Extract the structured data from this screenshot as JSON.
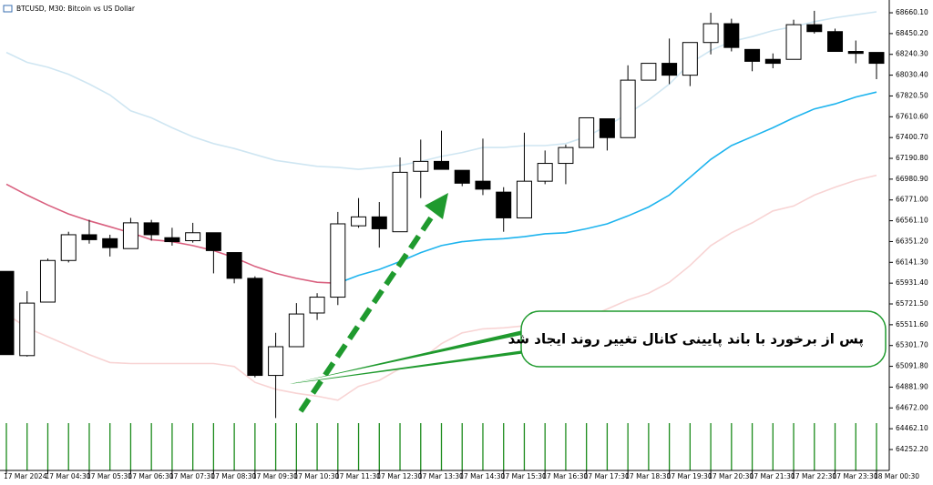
{
  "chart_data": {
    "type": "candlestick",
    "title": "BTCUSD, M30:  Bitcoin vs US Dollar",
    "annotation": "پس از برخورد با باند پایینی کانال تغییر روند ایجاد شد",
    "up_color": "#ffffff",
    "down_color": "#000000",
    "wick_color": "#000000",
    "categories": [
      "17 Mar 2024",
      null,
      "17 Mar 04:30",
      null,
      "17 Mar 05:30",
      null,
      "17 Mar 06:30",
      null,
      "17 Mar 07:30",
      null,
      "17 Mar 08:30",
      null,
      "17 Mar 09:30",
      null,
      "17 Mar 10:30",
      null,
      "17 Mar 11:30",
      null,
      "17 Mar 12:30",
      null,
      "17 Mar 13:30",
      null,
      "17 Mar 14:30",
      null,
      "17 Mar 15:30",
      null,
      "17 Mar 16:30",
      null,
      "17 Mar 17:30",
      null,
      "17 Mar 18:30",
      null,
      "17 Mar 19:30",
      null,
      "17 Mar 20:30",
      null,
      "17 Mar 21:30",
      null,
      "17 Mar 22:30",
      null,
      "17 Mar 23:30",
      null,
      "18 Mar 00:30"
    ],
    "open": [
      66050,
      65200,
      65740,
      66160,
      66420,
      66380,
      66280,
      66540,
      66390,
      66360,
      66440,
      66240,
      65980,
      65000,
      65290,
      65630,
      65790,
      66510,
      66600,
      66450,
      67060,
      67160,
      67070,
      66960,
      66850,
      66590,
      66960,
      67140,
      67300,
      67590,
      67400,
      67980,
      68150,
      68030,
      68360,
      68550,
      68290,
      68190,
      68190,
      68540,
      68470,
      68270,
      68260
    ],
    "high": [
      66050,
      65850,
      66180,
      66450,
      66570,
      66420,
      66590,
      66570,
      66490,
      66540,
      66440,
      66240,
      66000,
      65430,
      65730,
      65830,
      66650,
      66790,
      66750,
      67200,
      67380,
      67470,
      67070,
      67390,
      66900,
      67450,
      67270,
      67330,
      67600,
      67590,
      68130,
      68150,
      68400,
      68360,
      68660,
      68600,
      68290,
      68250,
      68590,
      68680,
      68500,
      68380,
      68260
    ],
    "low": [
      65210,
      65190,
      65740,
      66140,
      66330,
      66200,
      66280,
      66360,
      66310,
      66340,
      66030,
      65930,
      64980,
      64570,
      65290,
      65560,
      65710,
      66490,
      66290,
      66450,
      66790,
      67080,
      66910,
      66820,
      66450,
      66590,
      66930,
      66930,
      67300,
      67270,
      67400,
      67980,
      67940,
      67920,
      68240,
      68270,
      68070,
      68100,
      68190,
      68450,
      68270,
      68150,
      67990
    ],
    "close": [
      65210,
      65730,
      66160,
      66420,
      66370,
      66290,
      66540,
      66420,
      66350,
      66440,
      66260,
      65980,
      65000,
      65290,
      65620,
      65790,
      66530,
      66600,
      66480,
      67050,
      67160,
      67080,
      66940,
      66880,
      66590,
      66960,
      67140,
      67300,
      67600,
      67400,
      67980,
      68150,
      68030,
      68360,
      68550,
      68310,
      68170,
      68150,
      68540,
      68470,
      68270,
      68250,
      68150
    ],
    "lines": [
      {
        "color": "#cfe6f2",
        "values": [
          68260,
          68160,
          68110,
          68040,
          67940,
          67830,
          67670,
          67600,
          67500,
          67410,
          67340,
          67290,
          67230,
          67170,
          67140,
          67110,
          67100,
          67080,
          67100,
          67120,
          67160,
          67210,
          67250,
          67300,
          67300,
          67320,
          67320,
          67340,
          67410,
          67520,
          67640,
          67780,
          67940,
          68150,
          68280,
          68370,
          68420,
          68480,
          68520,
          68570,
          68610,
          68640,
          68670
        ]
      },
      {
        "color": "#d9607f",
        "values": [
          66930,
          66820,
          66720,
          66630,
          66560,
          66500,
          66440,
          66370,
          66350,
          66310,
          66260,
          66190,
          66100,
          66030,
          65980,
          65940,
          65930,
          null,
          null,
          null,
          null,
          null,
          null,
          null,
          null,
          null,
          null,
          null,
          null,
          null,
          null,
          null,
          null,
          null,
          null,
          null,
          null,
          null,
          null,
          null,
          null,
          null,
          null
        ]
      },
      {
        "color": "#1eb4ee",
        "values": [
          null,
          null,
          null,
          null,
          null,
          null,
          null,
          null,
          null,
          null,
          null,
          null,
          null,
          null,
          null,
          null,
          65930,
          66010,
          66070,
          66150,
          66240,
          66310,
          66350,
          66370,
          66380,
          66400,
          66430,
          66440,
          66480,
          66530,
          66610,
          66700,
          66820,
          67000,
          67180,
          67320,
          67410,
          67500,
          67600,
          67690,
          67740,
          67810,
          67860
        ]
      },
      {
        "color": "#f8d4d4",
        "values": [
          65620,
          65480,
          65390,
          65300,
          65210,
          65130,
          65120,
          65120,
          65120,
          65120,
          65120,
          65090,
          64930,
          64860,
          64820,
          64790,
          64750,
          64890,
          64950,
          65070,
          65160,
          65320,
          65430,
          65470,
          65480,
          65500,
          65500,
          65510,
          65580,
          65670,
          65760,
          65830,
          65940,
          66110,
          66310,
          66440,
          66540,
          66660,
          66710,
          66820,
          66900,
          66970,
          67020
        ]
      }
    ],
    "ylim": [
      64041,
      68789
    ],
    "yticks": [
      {
        "value": 68660.1,
        "label": "68660.10"
      },
      {
        "value": 68450.2,
        "label": "68450.20"
      },
      {
        "value": 68240.3,
        "label": "68240.30"
      },
      {
        "value": 68030.4,
        "label": "68030.40"
      },
      {
        "value": 67820.5,
        "label": "67820.50"
      },
      {
        "value": 67610.6,
        "label": "67610.60"
      },
      {
        "value": 67400.7,
        "label": "67400.70"
      },
      {
        "value": 67190.8,
        "label": "67190.80"
      },
      {
        "value": 66980.9,
        "label": "66980.90"
      },
      {
        "value": 66771,
        "label": "66771.00"
      },
      {
        "value": 66561.1,
        "label": "66561.10"
      },
      {
        "value": 66351.2,
        "label": "66351.20"
      },
      {
        "value": 66141.3,
        "label": "66141.30"
      },
      {
        "value": 65931.4,
        "label": "65931.40"
      },
      {
        "value": 65721.5,
        "label": "65721.50"
      },
      {
        "value": 65511.6,
        "label": "65511.60"
      },
      {
        "value": 65301.7,
        "label": "65301.70"
      },
      {
        "value": 65091.8,
        "label": "65091.80"
      },
      {
        "value": 64881.9,
        "label": "64881.90"
      },
      {
        "value": 64672,
        "label": "64672.00"
      },
      {
        "value": 64462.1,
        "label": "64462.10"
      },
      {
        "value": 64252.2,
        "label": "64252.20"
      }
    ]
  }
}
